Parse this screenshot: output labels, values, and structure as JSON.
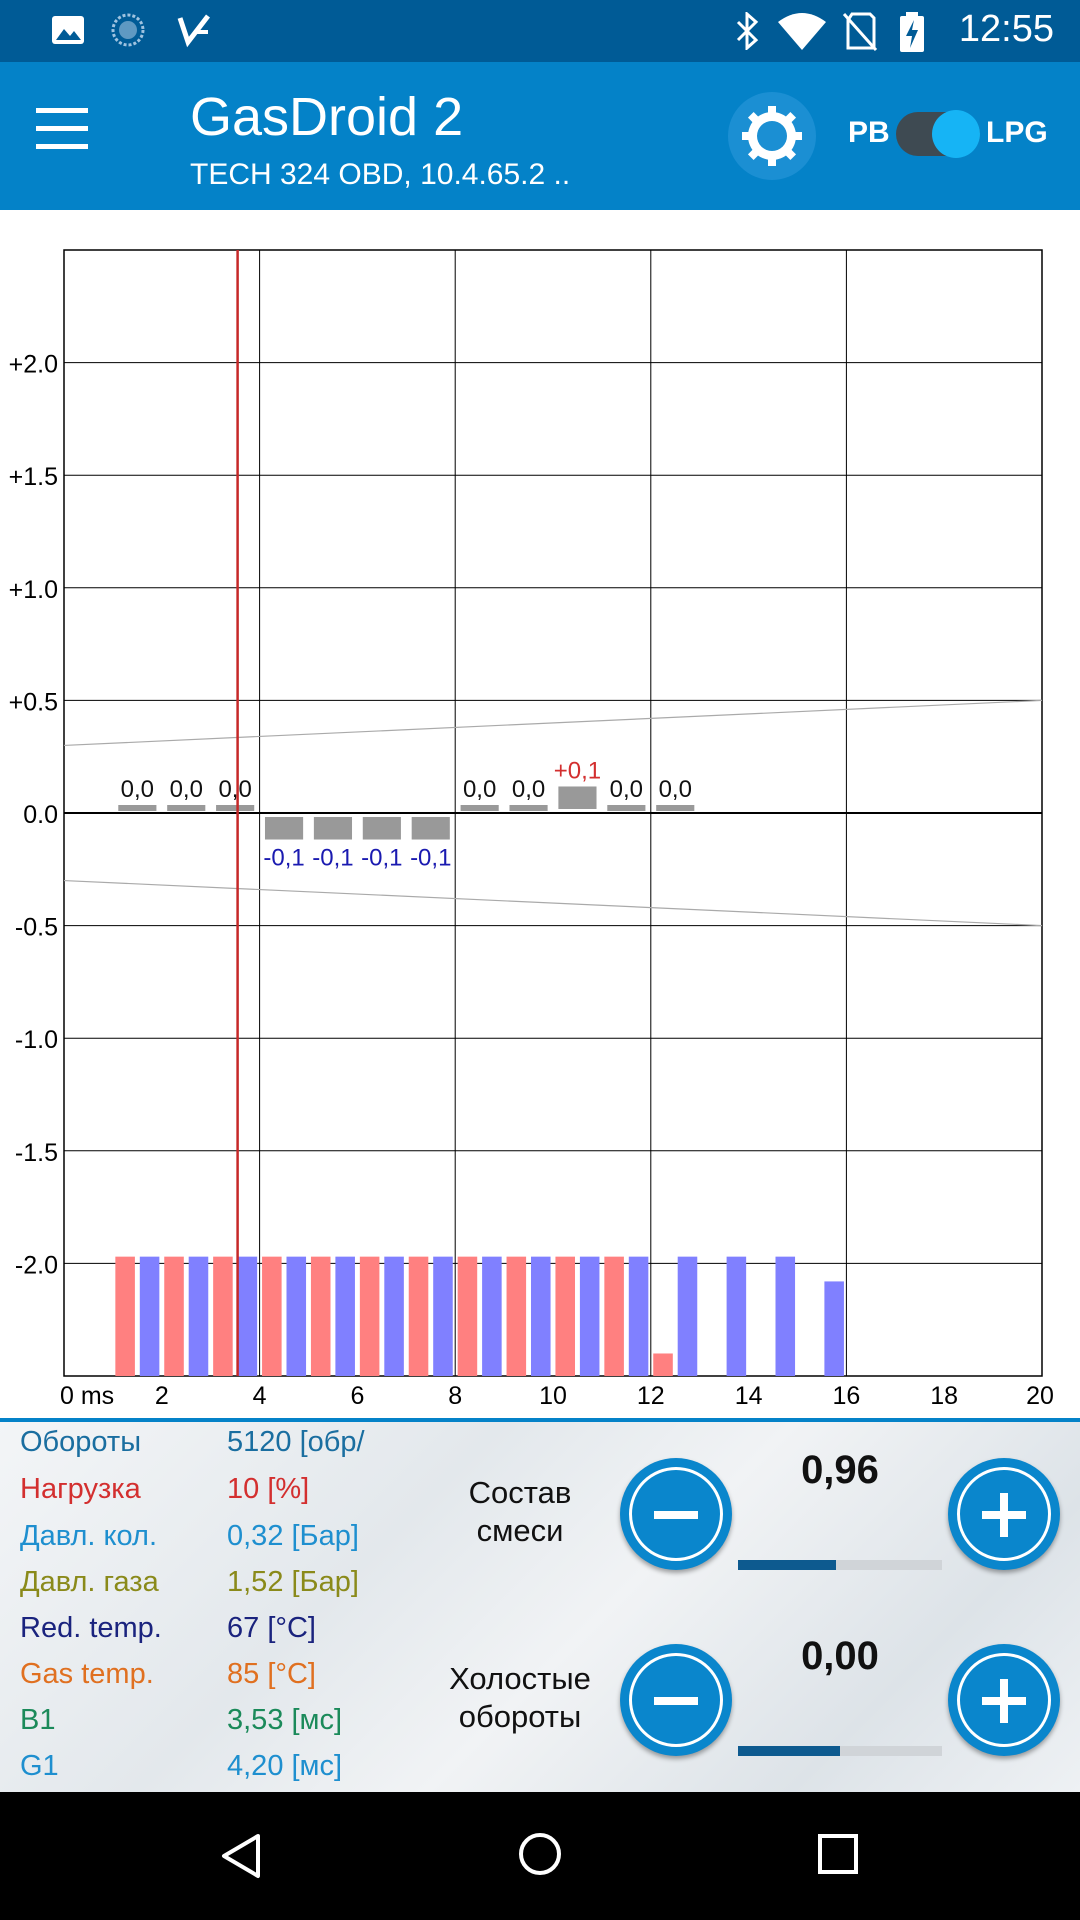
{
  "status_bar": {
    "time": "12:55",
    "left_icons": [
      "gallery-icon",
      "loading-icon",
      "checklist-icon"
    ],
    "right_icons": [
      "bluetooth-icon",
      "wifi-icon",
      "no-sim-icon",
      "battery-charging-icon"
    ]
  },
  "app_bar": {
    "title": "GasDroid 2",
    "subtitle": "TECH 324 OBD, 10.4.65.2 ..",
    "pb_label": "PB",
    "lpg_label": "LPG",
    "fuel_toggle_on": true,
    "accent_color": "#0482c8"
  },
  "chart_data": {
    "type": "bar",
    "y_ticks": [
      "+2.0",
      "+1.5",
      "+1.0",
      "+0.5",
      "0.0",
      "-0.5",
      "-1.0",
      "-1.5",
      "-2.0"
    ],
    "x_ticks": [
      "0 ms",
      "2",
      "4",
      "6",
      "8",
      "10",
      "12",
      "14",
      "16",
      "18",
      "20"
    ],
    "xlim": [
      0,
      20
    ],
    "ylim": [
      -2.5,
      2.5
    ],
    "grid": true,
    "cursor_x": 3.55,
    "correction_bars": {
      "x_centers": [
        1.5,
        2.5,
        3.5,
        4.5,
        5.5,
        6.5,
        7.5,
        8.5,
        9.5,
        10.5,
        11.5,
        12.5
      ],
      "values": [
        0.0,
        0.0,
        0.0,
        -0.1,
        -0.1,
        -0.1,
        -0.1,
        0.0,
        0.0,
        0.1,
        0.0,
        0.0
      ],
      "labels": [
        "0,0",
        "0,0",
        "0,0",
        "-0,1",
        "-0,1",
        "-0,1",
        "-0,1",
        "0,0",
        "0,0",
        "+0,1",
        "0,0",
        "0,0"
      ]
    },
    "tolerance_band": {
      "x": [
        0,
        20
      ],
      "upper": [
        0.3,
        0.5
      ],
      "lower": [
        -0.3,
        -0.5
      ]
    },
    "histogram": {
      "series": [
        {
          "name": "PB",
          "color": "#ff8080",
          "x": [
            1.25,
            2.25,
            3.25,
            4.25,
            5.25,
            6.25,
            7.25,
            8.25,
            9.25,
            10.25,
            11.25,
            12.25
          ],
          "values": [
            -1.97,
            -1.97,
            -1.97,
            -1.97,
            -1.97,
            -1.97,
            -1.97,
            -1.97,
            -1.97,
            -1.97,
            -1.97,
            -2.4
          ]
        },
        {
          "name": "LPG",
          "color": "#8080ff",
          "x": [
            1.75,
            2.75,
            3.75,
            4.75,
            5.75,
            6.75,
            7.75,
            8.75,
            9.75,
            10.75,
            11.75,
            12.75,
            13.75,
            14.75,
            15.75
          ],
          "values": [
            -1.97,
            -1.97,
            -1.97,
            -1.97,
            -1.97,
            -1.97,
            -1.97,
            -1.97,
            -1.97,
            -1.97,
            -1.97,
            -1.97,
            -1.97,
            -1.97,
            -2.08
          ]
        }
      ]
    }
  },
  "params": [
    {
      "label": "Обороты",
      "value": "5120 [обр/",
      "color": "#1a6ea0"
    },
    {
      "label": "Нагрузка",
      "value": "10 [%]",
      "color": "#d32f2f"
    },
    {
      "label": "Давл. кол.",
      "value": "0,32 [Бар]",
      "color": "#1e8fcf"
    },
    {
      "label": "Давл. газа",
      "value": "1,52 [Бар]",
      "color": "#8a8a1a"
    },
    {
      "label": "Red. temp.",
      "value": "67 [°C]",
      "color": "#1a237e"
    },
    {
      "label": "Gas temp.",
      "value": "85 [°C]",
      "color": "#e07020"
    },
    {
      "label": "B1",
      "value": "3,53 [мс]",
      "color": "#1b8a5a"
    },
    {
      "label": "G1",
      "value": "4,20 [мс]",
      "color": "#1e8fcf"
    }
  ],
  "controls": {
    "mixture": {
      "label_line1": "Состав",
      "label_line2": "смеси",
      "value": "0,96",
      "level": 0.48
    },
    "idle": {
      "label_line1": "Холостые",
      "label_line2": "обороты",
      "value": "0,00",
      "level": 0.5
    }
  },
  "nav": {
    "buttons": [
      "back-icon",
      "home-icon",
      "recents-icon"
    ]
  }
}
